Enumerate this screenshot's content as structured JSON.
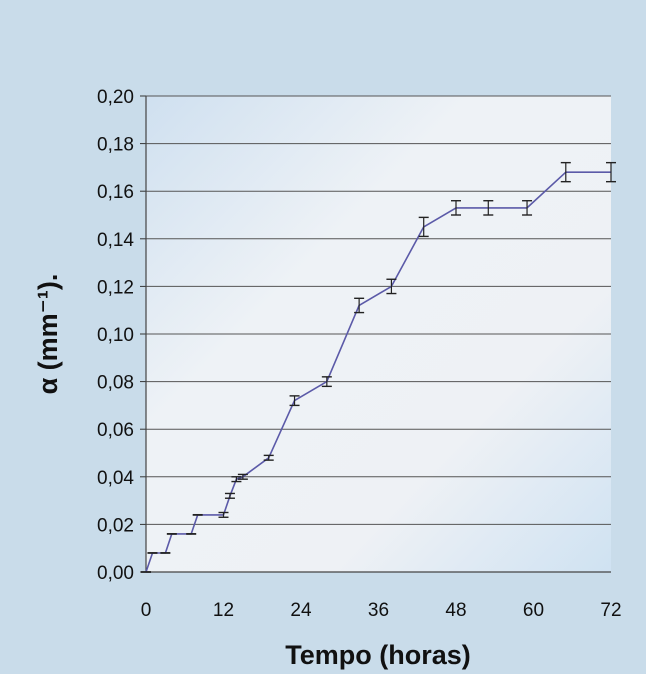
{
  "chart_data": {
    "type": "line",
    "title": "",
    "xlabel": "Tempo (horas)",
    "ylabel": "α (mm⁻¹).",
    "xlim": [
      0,
      72
    ],
    "ylim": [
      0,
      0.2
    ],
    "x_ticks": [
      0,
      12,
      24,
      36,
      48,
      60,
      72
    ],
    "x_tick_labels": [
      "0",
      "12",
      "24",
      "36",
      "48",
      "60",
      "72"
    ],
    "y_ticks": [
      0,
      0.02,
      0.04,
      0.06,
      0.08,
      0.1,
      0.12,
      0.14,
      0.16,
      0.18,
      0.2
    ],
    "y_tick_labels": [
      "0,00",
      "0,02",
      "0,04",
      "0,06",
      "0,08",
      "0,10",
      "0,12",
      "0,14",
      "0,16",
      "0,18",
      "0,20"
    ],
    "grid": true,
    "legend": "none",
    "series": [
      {
        "x": [
          0,
          1,
          3,
          4,
          7,
          8,
          12,
          13,
          14,
          15,
          19,
          23,
          28,
          33,
          38,
          43,
          48,
          53,
          59,
          65,
          72
        ],
        "y": [
          0.0,
          0.008,
          0.008,
          0.016,
          0.016,
          0.024,
          0.024,
          0.032,
          0.039,
          0.04,
          0.048,
          0.072,
          0.08,
          0.112,
          0.12,
          0.145,
          0.153,
          0.153,
          0.153,
          0.168,
          0.168
        ],
        "error": [
          0,
          0,
          0,
          0,
          0,
          0,
          0.001,
          0.001,
          0.001,
          0.001,
          0.001,
          0.002,
          0.002,
          0.003,
          0.003,
          0.004,
          0.003,
          0.003,
          0.003,
          0.004,
          0.004
        ]
      }
    ],
    "colors": {
      "line": "#5b5aa8",
      "error_bar": "#222222",
      "grid": "#555555",
      "plot_background": "#e9eef4",
      "page_background": "#c9dcea"
    }
  }
}
